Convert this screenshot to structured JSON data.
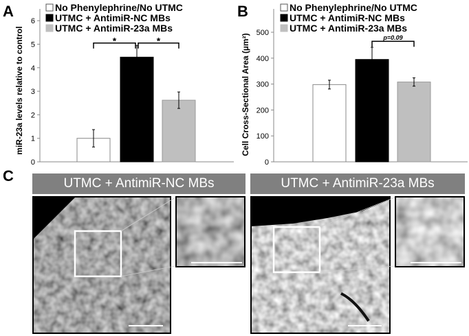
{
  "panel_labels": {
    "a": "A",
    "b": "B",
    "c": "C"
  },
  "legend": [
    {
      "label": "No Phenylephrine/No UTMC",
      "color": "#ffffff"
    },
    {
      "label": "UTMC + AntimiR-NC MBs",
      "color": "#000000"
    },
    {
      "label": "UTMC + AntimiR-23a MBs",
      "color": "#bfbfbf"
    }
  ],
  "chart_data": [
    {
      "type": "bar",
      "panel": "A",
      "categories": [
        "No Phenylephrine/No UTMC",
        "UTMC + AntimiR-NC MBs",
        "UTMC + AntimiR-23a MBs"
      ],
      "values": [
        1.0,
        4.45,
        2.62
      ],
      "errors": [
        0.37,
        0.5,
        0.35
      ],
      "colors": [
        "#ffffff",
        "#000000",
        "#bfbfbf"
      ],
      "ylabel": "miR-23a levels relative to control",
      "ylim": [
        0,
        6.5
      ],
      "yticks": [
        "0",
        "1",
        "2",
        "3",
        "4",
        "5",
        "6"
      ],
      "grid": false,
      "legend_position": "top-left",
      "annotations": [
        {
          "text": "*",
          "from": 0,
          "to": 1,
          "y": 5.05
        },
        {
          "text": "*",
          "from": 1,
          "to": 2,
          "y": 5.05
        }
      ]
    },
    {
      "type": "bar",
      "panel": "B",
      "categories": [
        "No Phenylephrine/No UTMC",
        "UTMC + AntimiR-NC MBs",
        "UTMC + AntimiR-23a MBs"
      ],
      "values": [
        298,
        395,
        308
      ],
      "errors": [
        17,
        47,
        16
      ],
      "colors": [
        "#ffffff",
        "#000000",
        "#bfbfbf"
      ],
      "ylabel": "Cell Cross-Sectional Area (µm²)",
      "ylim": [
        0,
        590
      ],
      "yticks": [
        "0",
        "100",
        "200",
        "300",
        "400",
        "500"
      ],
      "grid": false,
      "legend_position": "top-left",
      "annotations": [
        {
          "text": "p=0.09",
          "from": 1,
          "to": 2,
          "y": 465
        }
      ]
    }
  ],
  "panel_c": {
    "left_title": "UTMC + AntimiR-NC MBs",
    "right_title": "UTMC + AntimiR-23a MBs"
  }
}
